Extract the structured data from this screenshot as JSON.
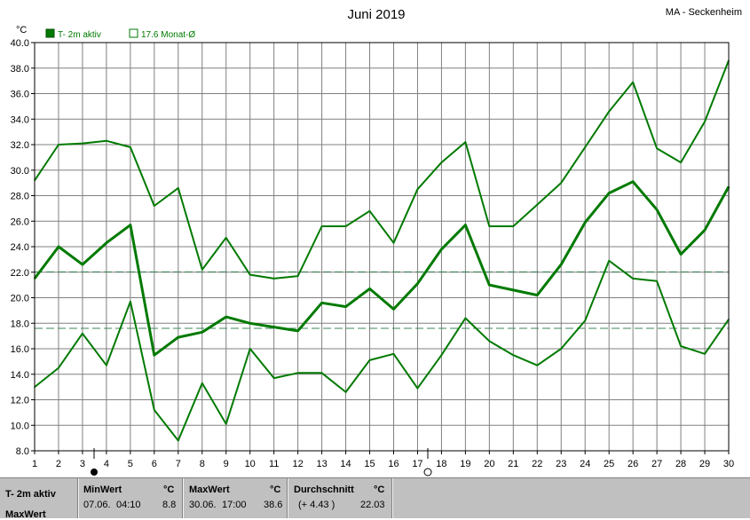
{
  "header": {
    "title": "Juni 2019",
    "station": "MA - Seckenheim"
  },
  "legend": {
    "series_label": "T- 2m aktiv",
    "avg_label": "17.6 Monat-Ø"
  },
  "colors": {
    "series": "#007a00",
    "grid": "#808080",
    "avg_line": "#3c8a5a",
    "footer_bg": "#c0c0c0"
  },
  "moon_icons": [
    "new-moon-icon",
    "full-moon-icon"
  ],
  "chart_data": {
    "type": "line",
    "title": "Juni 2019",
    "ylabel": "°C",
    "ylim": [
      8.0,
      40.0
    ],
    "yticks": [
      "8.0",
      "10.0",
      "12.0",
      "14.0",
      "16.0",
      "18.0",
      "20.0",
      "22.0",
      "24.0",
      "26.0",
      "28.0",
      "30.0",
      "32.0",
      "34.0",
      "36.0",
      "38.0",
      "40.0"
    ],
    "x": [
      1,
      2,
      3,
      4,
      5,
      6,
      7,
      8,
      9,
      10,
      11,
      12,
      13,
      14,
      15,
      16,
      17,
      18,
      19,
      20,
      21,
      22,
      23,
      24,
      25,
      26,
      27,
      28,
      29,
      30
    ],
    "grid": true,
    "legend_position": "top-left",
    "series": [
      {
        "name": "T- 2m aktiv",
        "role": "max",
        "values": [
          29.2,
          32.0,
          32.1,
          32.3,
          31.8,
          27.2,
          28.6,
          22.2,
          24.7,
          21.8,
          21.5,
          21.7,
          25.6,
          25.6,
          26.8,
          24.3,
          28.5,
          30.6,
          32.2,
          25.6,
          25.6,
          27.3,
          29.0,
          31.8,
          34.6,
          36.9,
          31.7,
          30.6,
          33.8,
          38.6
        ]
      },
      {
        "role": "mean",
        "values": [
          21.5,
          24.0,
          22.6,
          24.3,
          25.7,
          15.5,
          16.9,
          17.3,
          18.5,
          18.0,
          17.7,
          17.4,
          19.6,
          19.3,
          20.7,
          19.1,
          21.1,
          23.8,
          25.7,
          21.0,
          20.6,
          20.2,
          22.6,
          25.9,
          28.2,
          29.1,
          26.9,
          23.4,
          25.3,
          28.7
        ]
      },
      {
        "role": "min",
        "values": [
          13.0,
          14.5,
          17.2,
          14.7,
          19.7,
          11.2,
          8.8,
          13.3,
          10.1,
          16.0,
          13.7,
          14.1,
          14.1,
          12.6,
          15.1,
          15.6,
          12.9,
          15.5,
          18.4,
          16.6,
          15.5,
          14.7,
          16.0,
          18.2,
          22.9,
          21.5,
          21.3,
          16.2,
          15.6,
          18.3
        ]
      }
    ],
    "reference_lines": [
      {
        "label": "17.6 Monat-Ø",
        "value": 17.6
      },
      {
        "value": 22.03
      }
    ]
  },
  "stats": {
    "row1_label": "T- 2m aktiv",
    "row2_label": "MaxWert",
    "min": {
      "header": "MinWert",
      "unit": "°C",
      "date": "07.06.",
      "time": "04:10",
      "value": "8.8"
    },
    "max": {
      "header": "MaxWert",
      "unit": "°C",
      "date": "30.06.",
      "time": "17:00",
      "value": "38.6"
    },
    "avg": {
      "header": "Durchschnitt",
      "unit": "°C",
      "delta": "(+ 4.43 )",
      "value": "22.03"
    }
  }
}
